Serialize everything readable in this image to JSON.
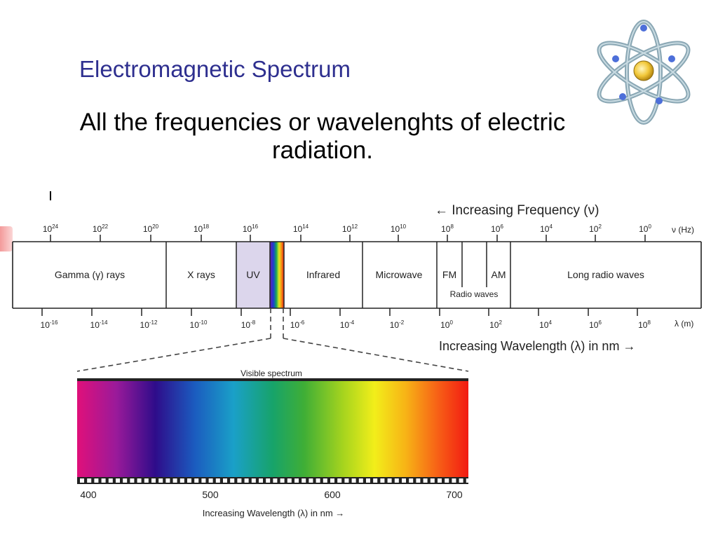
{
  "slide": {
    "title": "Electromagnetic Spectrum",
    "subtitle": "All the frequencies or wavelenghts of electric radiation."
  },
  "logo": {
    "icon": "atom-icon"
  },
  "spectrum": {
    "frequency_heading": "← Increasing Frequency (ν)",
    "frequency_unit": "ν (Hz)",
    "frequency_exponents": [
      "24",
      "22",
      "20",
      "18",
      "16",
      "14",
      "12",
      "10",
      "8",
      "6",
      "4",
      "2",
      "0"
    ],
    "wavelength_unit": "λ (m)",
    "wavelength_exponents": [
      "-16",
      "-14",
      "-12",
      "-10",
      "-8",
      "-6",
      "-4",
      "-2",
      "0",
      "2",
      "4",
      "6",
      "8"
    ],
    "wavelength_heading": "Increasing Wavelength (λ) in nm →",
    "bands": {
      "gamma": "Gamma (γ) rays",
      "xray": "X rays",
      "uv": "UV",
      "infrared": "Infrared",
      "microwave": "Microwave",
      "fm": "FM",
      "am": "AM",
      "radio_waves": "Radio waves",
      "long_radio": "Long radio waves"
    },
    "colors": {
      "uv_fill": "#dcd6ec",
      "border": "#222222"
    }
  },
  "visible": {
    "title": "Visible spectrum",
    "ticks": [
      "400",
      "500",
      "600",
      "700"
    ],
    "axis_label": "Increasing Wavelength (λ) in nm →"
  }
}
